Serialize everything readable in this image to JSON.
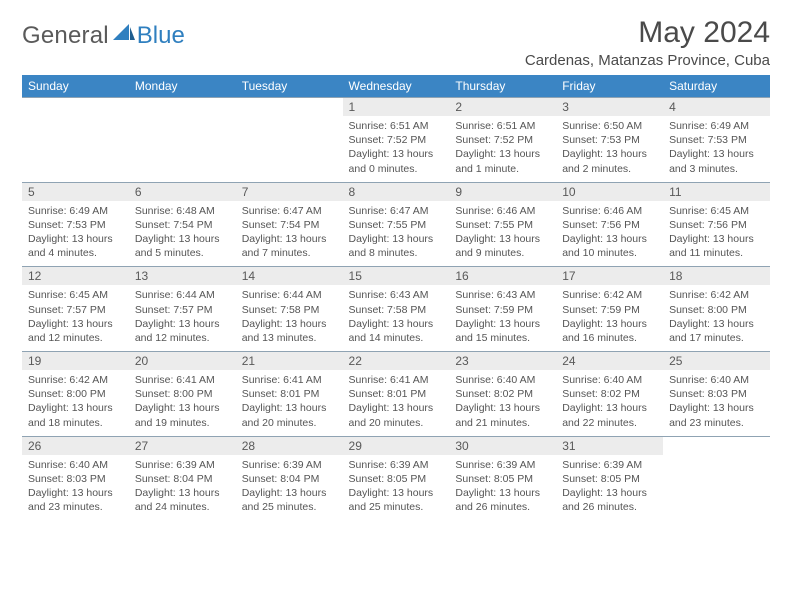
{
  "brand": {
    "text1": "General",
    "text2": "Blue",
    "accent_color": "#2f7fbf"
  },
  "title": "May 2024",
  "location": "Cardenas, Matanzas Province, Cuba",
  "day_headers": [
    "Sunday",
    "Monday",
    "Tuesday",
    "Wednesday",
    "Thursday",
    "Friday",
    "Saturday"
  ],
  "colors": {
    "header_bg": "#3b85c4",
    "header_text": "#ffffff",
    "daynum_bg": "#ececec",
    "border": "#8fa3b3",
    "text": "#4a4a4a"
  },
  "weeks": [
    [
      null,
      null,
      null,
      {
        "n": "1",
        "sr": "6:51 AM",
        "ss": "7:52 PM",
        "dl": "13 hours and 0 minutes."
      },
      {
        "n": "2",
        "sr": "6:51 AM",
        "ss": "7:52 PM",
        "dl": "13 hours and 1 minute."
      },
      {
        "n": "3",
        "sr": "6:50 AM",
        "ss": "7:53 PM",
        "dl": "13 hours and 2 minutes."
      },
      {
        "n": "4",
        "sr": "6:49 AM",
        "ss": "7:53 PM",
        "dl": "13 hours and 3 minutes."
      }
    ],
    [
      {
        "n": "5",
        "sr": "6:49 AM",
        "ss": "7:53 PM",
        "dl": "13 hours and 4 minutes."
      },
      {
        "n": "6",
        "sr": "6:48 AM",
        "ss": "7:54 PM",
        "dl": "13 hours and 5 minutes."
      },
      {
        "n": "7",
        "sr": "6:47 AM",
        "ss": "7:54 PM",
        "dl": "13 hours and 7 minutes."
      },
      {
        "n": "8",
        "sr": "6:47 AM",
        "ss": "7:55 PM",
        "dl": "13 hours and 8 minutes."
      },
      {
        "n": "9",
        "sr": "6:46 AM",
        "ss": "7:55 PM",
        "dl": "13 hours and 9 minutes."
      },
      {
        "n": "10",
        "sr": "6:46 AM",
        "ss": "7:56 PM",
        "dl": "13 hours and 10 minutes."
      },
      {
        "n": "11",
        "sr": "6:45 AM",
        "ss": "7:56 PM",
        "dl": "13 hours and 11 minutes."
      }
    ],
    [
      {
        "n": "12",
        "sr": "6:45 AM",
        "ss": "7:57 PM",
        "dl": "13 hours and 12 minutes."
      },
      {
        "n": "13",
        "sr": "6:44 AM",
        "ss": "7:57 PM",
        "dl": "13 hours and 12 minutes."
      },
      {
        "n": "14",
        "sr": "6:44 AM",
        "ss": "7:58 PM",
        "dl": "13 hours and 13 minutes."
      },
      {
        "n": "15",
        "sr": "6:43 AM",
        "ss": "7:58 PM",
        "dl": "13 hours and 14 minutes."
      },
      {
        "n": "16",
        "sr": "6:43 AM",
        "ss": "7:59 PM",
        "dl": "13 hours and 15 minutes."
      },
      {
        "n": "17",
        "sr": "6:42 AM",
        "ss": "7:59 PM",
        "dl": "13 hours and 16 minutes."
      },
      {
        "n": "18",
        "sr": "6:42 AM",
        "ss": "8:00 PM",
        "dl": "13 hours and 17 minutes."
      }
    ],
    [
      {
        "n": "19",
        "sr": "6:42 AM",
        "ss": "8:00 PM",
        "dl": "13 hours and 18 minutes."
      },
      {
        "n": "20",
        "sr": "6:41 AM",
        "ss": "8:00 PM",
        "dl": "13 hours and 19 minutes."
      },
      {
        "n": "21",
        "sr": "6:41 AM",
        "ss": "8:01 PM",
        "dl": "13 hours and 20 minutes."
      },
      {
        "n": "22",
        "sr": "6:41 AM",
        "ss": "8:01 PM",
        "dl": "13 hours and 20 minutes."
      },
      {
        "n": "23",
        "sr": "6:40 AM",
        "ss": "8:02 PM",
        "dl": "13 hours and 21 minutes."
      },
      {
        "n": "24",
        "sr": "6:40 AM",
        "ss": "8:02 PM",
        "dl": "13 hours and 22 minutes."
      },
      {
        "n": "25",
        "sr": "6:40 AM",
        "ss": "8:03 PM",
        "dl": "13 hours and 23 minutes."
      }
    ],
    [
      {
        "n": "26",
        "sr": "6:40 AM",
        "ss": "8:03 PM",
        "dl": "13 hours and 23 minutes."
      },
      {
        "n": "27",
        "sr": "6:39 AM",
        "ss": "8:04 PM",
        "dl": "13 hours and 24 minutes."
      },
      {
        "n": "28",
        "sr": "6:39 AM",
        "ss": "8:04 PM",
        "dl": "13 hours and 25 minutes."
      },
      {
        "n": "29",
        "sr": "6:39 AM",
        "ss": "8:05 PM",
        "dl": "13 hours and 25 minutes."
      },
      {
        "n": "30",
        "sr": "6:39 AM",
        "ss": "8:05 PM",
        "dl": "13 hours and 26 minutes."
      },
      {
        "n": "31",
        "sr": "6:39 AM",
        "ss": "8:05 PM",
        "dl": "13 hours and 26 minutes."
      },
      null
    ]
  ],
  "labels": {
    "sunrise": "Sunrise:",
    "sunset": "Sunset:",
    "daylight": "Daylight:"
  }
}
